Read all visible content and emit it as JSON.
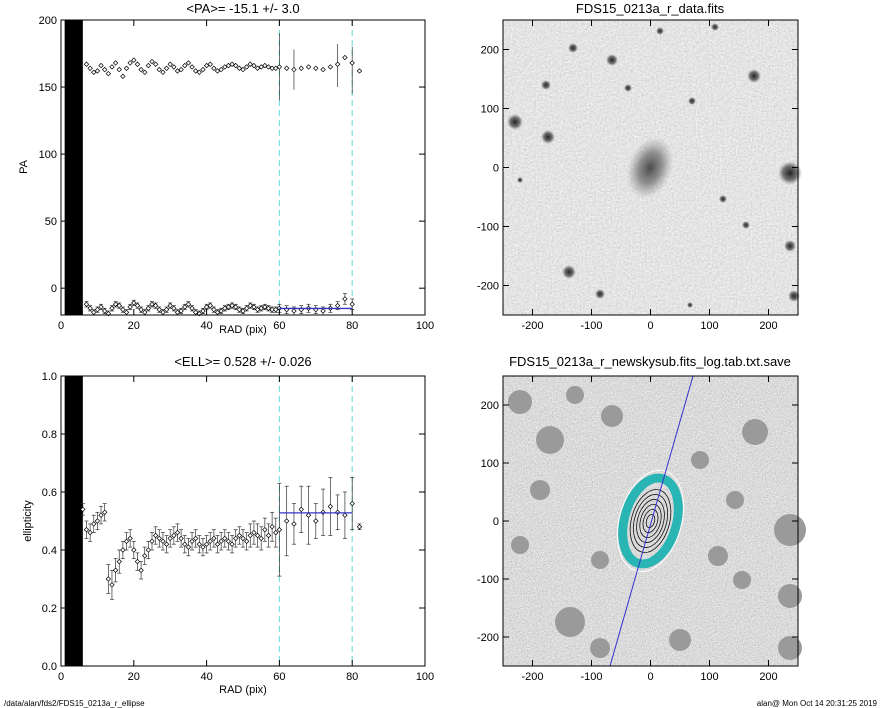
{
  "charts": [
    {
      "id": "pa",
      "title": "<PA>= -15.1 +/-   3.0",
      "xlabel": "RAD (pix)",
      "ylabel": "PA",
      "xlim": [
        0,
        100
      ],
      "ylim": [
        -20,
        200
      ],
      "xticks": [
        0,
        20,
        40,
        60,
        80,
        100
      ],
      "yticks": [
        0,
        50,
        100,
        150,
        200
      ],
      "vlines": [
        60,
        80
      ],
      "vline_color": "#7fe0e0",
      "fit_color": "#3333cc",
      "fit": {
        "x": [
          60,
          80
        ],
        "y": -15.1
      },
      "mask_x": [
        1,
        6
      ],
      "series": [
        {
          "x": [
            7,
            8,
            9,
            10,
            11,
            12,
            13,
            14,
            15,
            16,
            17,
            18,
            19,
            20,
            21,
            22,
            23,
            24,
            25,
            26,
            27,
            28,
            29,
            30,
            31,
            32,
            33,
            34,
            35,
            36,
            37,
            38,
            39,
            40,
            41,
            42,
            43,
            44,
            45,
            46,
            47,
            48,
            49,
            50,
            51,
            52,
            53,
            54,
            55,
            56,
            57,
            58,
            59,
            60,
            62,
            64,
            66,
            68,
            70,
            72,
            74,
            76,
            78,
            80,
            82
          ],
          "y": [
            167,
            164,
            161,
            162,
            166,
            163,
            160,
            165,
            168,
            163,
            158,
            164,
            168,
            170,
            167,
            163,
            161,
            166,
            169,
            167,
            163,
            161,
            164,
            167,
            165,
            162,
            163,
            166,
            168,
            165,
            162,
            161,
            163,
            166,
            167,
            164,
            162,
            163,
            165,
            166,
            167,
            166,
            164,
            163,
            165,
            167,
            166,
            164,
            165,
            166,
            165,
            164,
            164,
            165,
            164,
            163,
            164,
            165,
            164,
            163,
            165,
            167,
            172,
            168,
            162
          ]
        },
        {
          "x": [
            7,
            8,
            9,
            10,
            11,
            12,
            13,
            14,
            15,
            16,
            17,
            18,
            19,
            20,
            21,
            22,
            23,
            24,
            25,
            26,
            27,
            28,
            29,
            30,
            31,
            32,
            33,
            34,
            35,
            36,
            37,
            38,
            39,
            40,
            41,
            42,
            43,
            44,
            45,
            46,
            47,
            48,
            49,
            50,
            51,
            52,
            53,
            54,
            55,
            56,
            57,
            58,
            59,
            60,
            62,
            64,
            66,
            68,
            70,
            72,
            74,
            76,
            78,
            80
          ],
          "y": [
            -12,
            -15,
            -18,
            -16,
            -14,
            -17,
            -19,
            -15,
            -12,
            -13,
            -16,
            -18,
            -14,
            -11,
            -13,
            -16,
            -18,
            -15,
            -12,
            -13,
            -16,
            -18,
            -16,
            -13,
            -15,
            -18,
            -17,
            -14,
            -12,
            -15,
            -18,
            -19,
            -17,
            -14,
            -13,
            -16,
            -18,
            -17,
            -15,
            -14,
            -13,
            -14,
            -16,
            -17,
            -15,
            -13,
            -14,
            -16,
            -15,
            -14,
            -15,
            -16,
            -16,
            -15,
            -16,
            -17,
            -16,
            -15,
            -16,
            -17,
            -15,
            -13,
            -8,
            -12
          ],
          "err": [
            2,
            2,
            2,
            2,
            2,
            2,
            2,
            2,
            2,
            2,
            2,
            2,
            2,
            2,
            2,
            2,
            2,
            2,
            2,
            2,
            2,
            2,
            2,
            2,
            2,
            2,
            2,
            2,
            2,
            2,
            2,
            2,
            2,
            2,
            2,
            2,
            2,
            2,
            2,
            2,
            2,
            2,
            2,
            2,
            2,
            2,
            2,
            2,
            2,
            2,
            2,
            2,
            2,
            3,
            3,
            3,
            3,
            3,
            3,
            3,
            3,
            3,
            4,
            4
          ]
        }
      ],
      "errbars_upper": {
        "x": [
          60,
          64,
          76,
          80
        ],
        "lo": [
          140,
          148,
          150,
          145
        ],
        "hi": [
          190,
          178,
          182,
          180
        ]
      }
    },
    {
      "id": "ell",
      "title": "<ELL>= 0.528 +/-  0.026",
      "xlabel": "RAD (pix)",
      "ylabel": "ellipticity",
      "xlim": [
        0,
        100
      ],
      "ylim": [
        0,
        1
      ],
      "xticks": [
        0,
        20,
        40,
        60,
        80,
        100
      ],
      "yticks": [
        "0.0",
        "0.2",
        "0.4",
        "0.6",
        "0.8",
        "1.0"
      ],
      "vlines": [
        60,
        80
      ],
      "vline_color": "#7fe0e0",
      "fit_color": "#3333cc",
      "fit": {
        "x": [
          60,
          80
        ],
        "y": 0.528
      },
      "mask_x": [
        1,
        6
      ],
      "series": [
        {
          "x": [
            6,
            7,
            8,
            9,
            10,
            11,
            12,
            13,
            14,
            15,
            16,
            17,
            18,
            19,
            20,
            21,
            22,
            23,
            24,
            25,
            26,
            27,
            28,
            29,
            30,
            31,
            32,
            33,
            34,
            35,
            36,
            37,
            38,
            39,
            40,
            41,
            42,
            43,
            44,
            45,
            46,
            47,
            48,
            49,
            50,
            51,
            52,
            53,
            54,
            55,
            56,
            57,
            58,
            59,
            60,
            62,
            64,
            66,
            68,
            70,
            72,
            74,
            76,
            78,
            80,
            82
          ],
          "y": [
            0.54,
            0.47,
            0.46,
            0.49,
            0.5,
            0.52,
            0.53,
            0.3,
            0.28,
            0.33,
            0.36,
            0.4,
            0.43,
            0.44,
            0.4,
            0.36,
            0.33,
            0.38,
            0.4,
            0.43,
            0.45,
            0.44,
            0.43,
            0.42,
            0.44,
            0.45,
            0.46,
            0.44,
            0.42,
            0.41,
            0.43,
            0.44,
            0.42,
            0.41,
            0.42,
            0.43,
            0.44,
            0.42,
            0.43,
            0.44,
            0.43,
            0.42,
            0.44,
            0.45,
            0.44,
            0.43,
            0.45,
            0.46,
            0.45,
            0.44,
            0.47,
            0.45,
            0.48,
            0.46,
            0.47,
            0.5,
            0.49,
            0.54,
            0.52,
            0.5,
            0.53,
            0.55,
            0.53,
            0.52,
            0.56,
            0.48
          ],
          "err": [
            0.02,
            0.03,
            0.03,
            0.03,
            0.03,
            0.03,
            0.03,
            0.05,
            0.05,
            0.04,
            0.04,
            0.03,
            0.03,
            0.03,
            0.03,
            0.03,
            0.03,
            0.03,
            0.03,
            0.03,
            0.03,
            0.03,
            0.03,
            0.03,
            0.03,
            0.03,
            0.03,
            0.03,
            0.03,
            0.03,
            0.03,
            0.03,
            0.03,
            0.03,
            0.03,
            0.03,
            0.03,
            0.03,
            0.03,
            0.03,
            0.03,
            0.03,
            0.03,
            0.03,
            0.03,
            0.03,
            0.04,
            0.04,
            0.04,
            0.04,
            0.04,
            0.04,
            0.05,
            0.05,
            0.16,
            0.12,
            0.07,
            0.08,
            0.1,
            0.06,
            0.08,
            0.1,
            0.06,
            0.08,
            0.09,
            0.01
          ]
        }
      ]
    }
  ],
  "images": [
    {
      "id": "data",
      "title": "FDS15_0213a_r_data.fits",
      "xticks": [
        -200,
        -100,
        0,
        100,
        200
      ],
      "yticks": [
        -200,
        -100,
        0,
        100,
        200
      ],
      "lim": [
        -250,
        250
      ]
    },
    {
      "id": "sub",
      "title": "FDS15_0213a_r_newskysub.fits_log.tab.txt.save",
      "xticks": [
        -200,
        -100,
        0,
        100,
        200
      ],
      "yticks": [
        -200,
        -100,
        0,
        100,
        200
      ],
      "lim": [
        -250,
        250
      ],
      "ellipse_color": "#2ab5b5",
      "line_color": "#3333cc"
    }
  ],
  "footer": {
    "left": "/data/alan/fds2/FDS15_0213a_r_ellipse",
    "right": "alan@  Mon Oct 14 20:31:25 2019"
  }
}
